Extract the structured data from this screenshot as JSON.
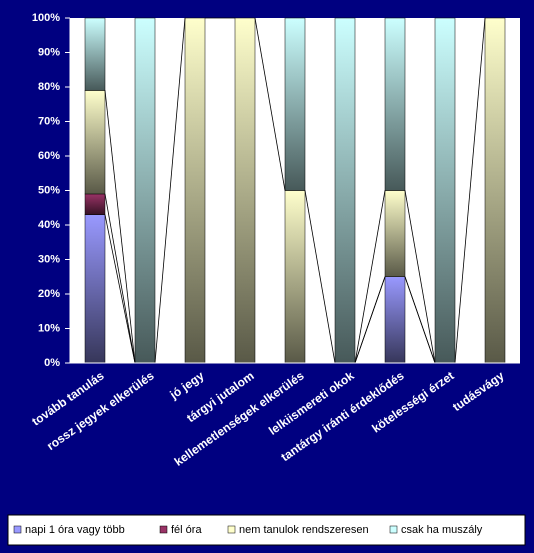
{
  "chart_data": {
    "type": "stacked_bar_100",
    "categories": [
      "tovább tanulás",
      "rossz jegyek elkerülés",
      "jó jegy",
      "tárgyi jutalom",
      "kellemetlenségek elkerülés",
      "lelkiismereti okok",
      "tantárgy iránti érdeklődés",
      "kötelességi érzet",
      "tudásvágy"
    ],
    "series": [
      {
        "name": "napi 1 óra vagy több",
        "color": "#9999ff",
        "values": [
          43,
          0,
          0,
          0,
          0,
          0,
          25,
          0,
          0
        ]
      },
      {
        "name": "fél óra",
        "color": "#993366",
        "values": [
          6,
          0,
          0,
          0,
          0,
          0,
          0,
          0,
          0
        ]
      },
      {
        "name": "nem tanulok rendszeresen",
        "color": "#ffffcc",
        "values": [
          30,
          0,
          100,
          100,
          50,
          0,
          25,
          0,
          100
        ]
      },
      {
        "name": "csak ha muszály",
        "color": "#ccffff",
        "values": [
          21,
          100,
          0,
          0,
          50,
          100,
          50,
          100,
          0
        ]
      }
    ],
    "ylim": [
      0,
      100
    ],
    "yticks": [
      {
        "value": 0,
        "label": "0%"
      },
      {
        "value": 10,
        "label": "10%"
      },
      {
        "value": 20,
        "label": "20%"
      },
      {
        "value": 30,
        "label": "30%"
      },
      {
        "value": 40,
        "label": "40%"
      },
      {
        "value": 50,
        "label": "50%"
      },
      {
        "value": 60,
        "label": "60%"
      },
      {
        "value": 70,
        "label": "70%"
      },
      {
        "value": 80,
        "label": "80%"
      },
      {
        "value": 90,
        "label": "90%"
      },
      {
        "value": 100,
        "label": "100%"
      }
    ]
  }
}
